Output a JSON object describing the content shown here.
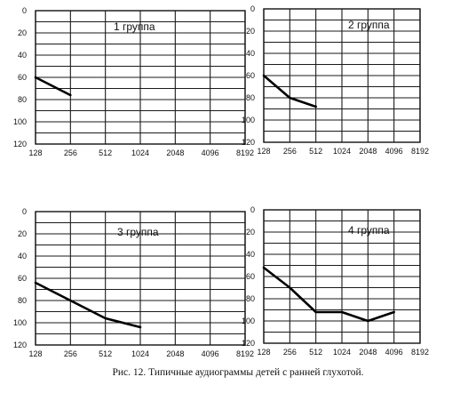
{
  "caption": "Рис. 12. Типичные аудиограммы детей с ранней глухотой.",
  "chart_data": [
    {
      "type": "line",
      "title": "1 группа",
      "x": [
        128,
        256,
        512,
        1024,
        2048,
        4096,
        8192
      ],
      "x_tick_labels": [
        "128",
        "256",
        "512",
        "1024",
        "2048",
        "4096",
        "8192"
      ],
      "y_tick_labels": [
        "0",
        "20",
        "40",
        "60",
        "80",
        "100",
        "120"
      ],
      "ylim": [
        0,
        120
      ],
      "y_inverted": true,
      "grid": true,
      "series": [
        {
          "x": [
            128,
            256
          ],
          "y": [
            60,
            76
          ]
        }
      ]
    },
    {
      "type": "line",
      "title": "2 группа",
      "x": [
        128,
        256,
        512,
        1024,
        2048,
        4096,
        8192
      ],
      "x_tick_labels": [
        "128",
        "256",
        "512",
        "1024",
        "2048",
        "4096",
        "8192"
      ],
      "y_tick_labels": [
        "0",
        "20",
        "40",
        "60",
        "80",
        "100",
        "120"
      ],
      "ylim": [
        0,
        120
      ],
      "y_inverted": true,
      "grid": true,
      "series": [
        {
          "x": [
            128,
            256,
            512
          ],
          "y": [
            60,
            80,
            88
          ]
        }
      ]
    },
    {
      "type": "line",
      "title": "3 группа",
      "x": [
        128,
        256,
        512,
        1024,
        2048,
        4096,
        8192
      ],
      "x_tick_labels": [
        "128",
        "256",
        "512",
        "1024",
        "2048",
        "4096",
        "8192"
      ],
      "y_tick_labels": [
        "0",
        "20",
        "40",
        "60",
        "80",
        "100",
        "120"
      ],
      "ylim": [
        0,
        120
      ],
      "y_inverted": true,
      "grid": true,
      "series": [
        {
          "x": [
            128,
            256,
            512,
            1024
          ],
          "y": [
            64,
            80,
            96,
            104
          ]
        }
      ]
    },
    {
      "type": "line",
      "title": "4 группа",
      "x": [
        128,
        256,
        512,
        1024,
        2048,
        4096,
        8192
      ],
      "x_tick_labels": [
        "128",
        "256",
        "512",
        "1024",
        "2048",
        "4096",
        "8192"
      ],
      "y_tick_labels": [
        "0",
        "20",
        "40",
        "60",
        "80",
        "100",
        "120"
      ],
      "ylim": [
        0,
        120
      ],
      "y_inverted": true,
      "grid": true,
      "series": [
        {
          "x": [
            128,
            256,
            512,
            724,
            1024,
            2048,
            4096
          ],
          "y": [
            52,
            70,
            92,
            92,
            92,
            100,
            92
          ]
        }
      ]
    }
  ]
}
